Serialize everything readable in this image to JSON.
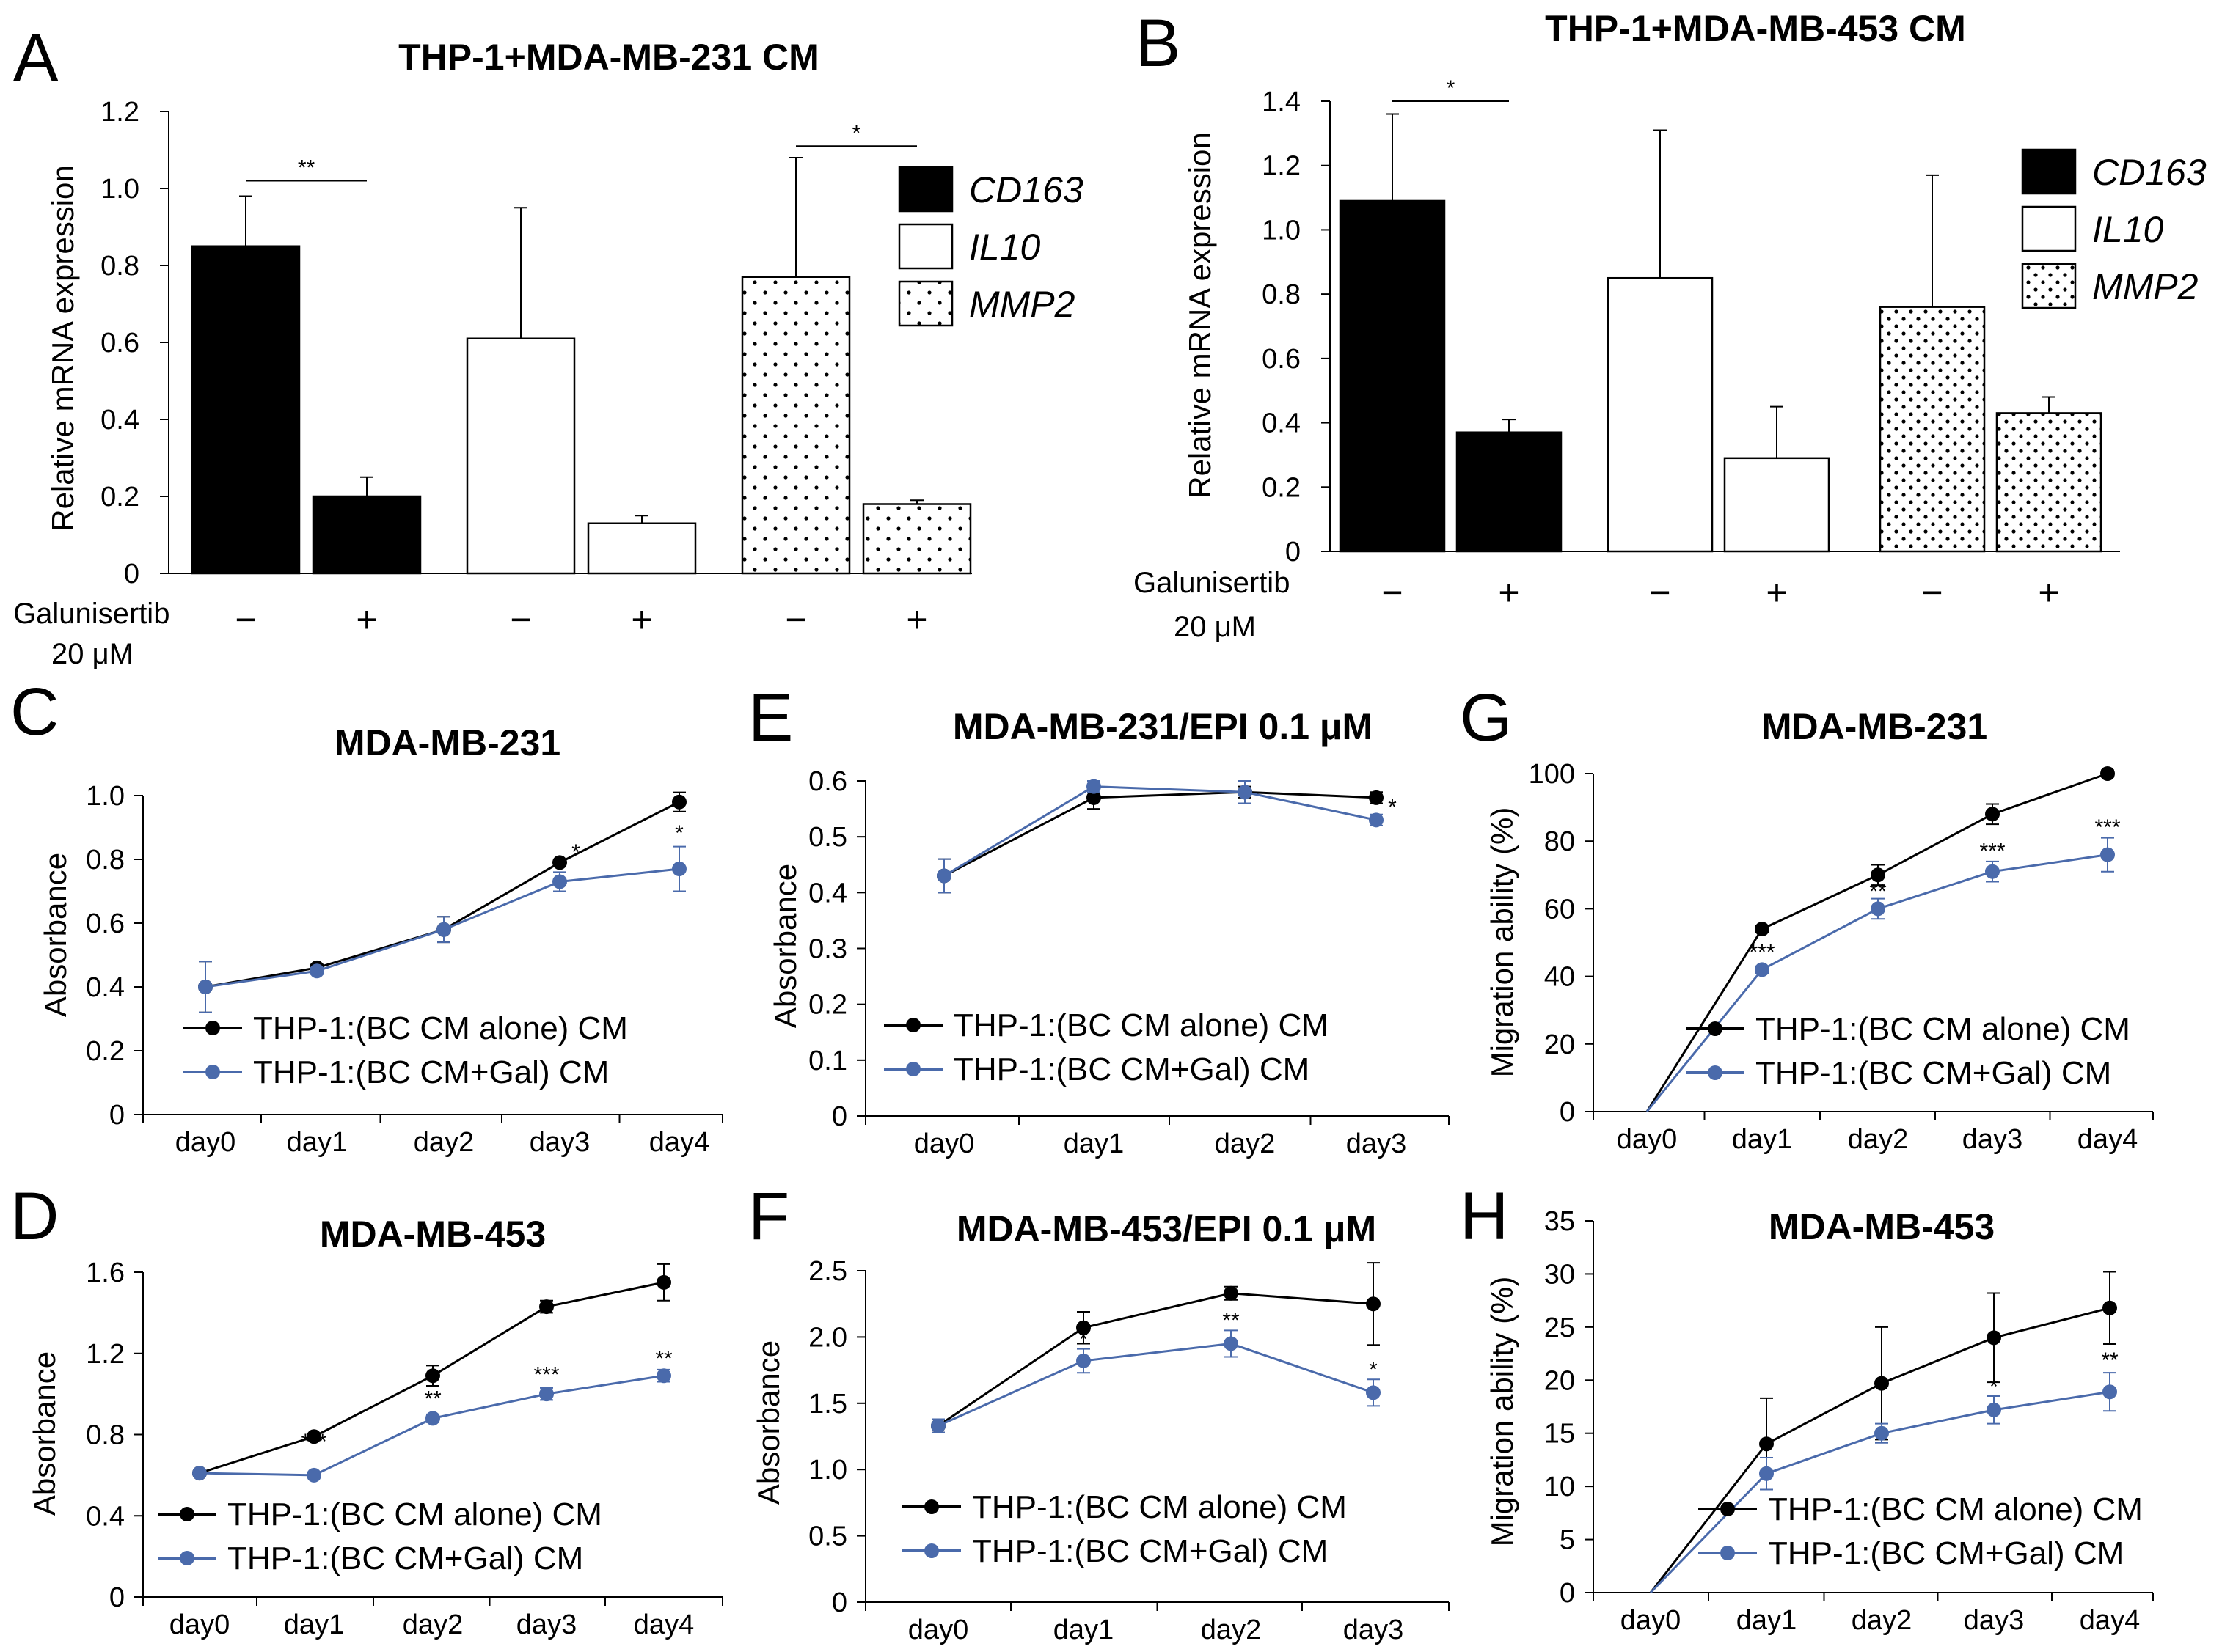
{
  "figure": {
    "panel_letters": [
      "A",
      "B",
      "C",
      "D",
      "E",
      "F",
      "G",
      "H"
    ],
    "galunisertib_label_line1": "Galunisertib",
    "galunisertib_label_line2": "20 μM",
    "bar_legend": [
      "CD163",
      "IL10",
      "MMP2"
    ],
    "line_series_names": [
      "THP-1:(BC CM alone) CM",
      "THP-1:(BC CM+Gal) CM"
    ],
    "colors": {
      "series_alone": "#000000",
      "series_gal": "#4a6aab",
      "bar_cd163": "#000000",
      "bar_il10": "#ffffff"
    }
  },
  "chart_data": [
    {
      "id": "A",
      "type": "bar",
      "title": "THP-1+MDA-MB-231 CM",
      "ylabel": "Relative mRNA expression",
      "ylim": [
        0,
        1.2
      ],
      "yticks": [
        "0",
        "0.2",
        "0.4",
        "0.6",
        "0.8",
        "1.0",
        "1.2"
      ],
      "ytick_values": [
        0,
        0.2,
        0.4,
        0.6,
        0.8,
        1.0,
        1.2
      ],
      "groups": [
        "CD163",
        "IL10",
        "MMP2"
      ],
      "conditions": [
        "−",
        "+"
      ],
      "values": [
        [
          0.85,
          0.2
        ],
        [
          0.61,
          0.13
        ],
        [
          0.77,
          0.18
        ]
      ],
      "errors": [
        [
          0.13,
          0.05
        ],
        [
          0.34,
          0.02
        ],
        [
          0.31,
          0.01
        ]
      ],
      "significance": [
        {
          "group": 0,
          "label": "**",
          "y": 1.02
        },
        {
          "group": 2,
          "label": "*",
          "y": 1.11
        }
      ]
    },
    {
      "id": "B",
      "type": "bar",
      "title": "THP-1+MDA-MB-453 CM",
      "ylabel": "Relative mRNA expression",
      "ylim": [
        0,
        1.4
      ],
      "yticks": [
        "0",
        "0.2",
        "0.4",
        "0.6",
        "0.8",
        "1.0",
        "1.2",
        "1.4"
      ],
      "ytick_values": [
        0,
        0.2,
        0.4,
        0.6,
        0.8,
        1.0,
        1.2,
        1.4
      ],
      "groups": [
        "CD163",
        "IL10",
        "MMP2"
      ],
      "conditions": [
        "−",
        "+"
      ],
      "values": [
        [
          1.09,
          0.37
        ],
        [
          0.85,
          0.29
        ],
        [
          0.76,
          0.43
        ]
      ],
      "errors": [
        [
          0.27,
          0.04
        ],
        [
          0.46,
          0.16
        ],
        [
          0.41,
          0.05
        ]
      ],
      "significance": [
        {
          "group": 0,
          "label": "*",
          "y": 1.4
        }
      ]
    },
    {
      "id": "C",
      "type": "line",
      "title": "MDA-MB-231",
      "ylabel": "Absorbance",
      "ylim": [
        0,
        1.0
      ],
      "yticks": [
        "0",
        "0.2",
        "0.4",
        "0.6",
        "0.8",
        "1.0"
      ],
      "ytick_values": [
        0,
        0.2,
        0.4,
        0.6,
        0.8,
        1.0
      ],
      "x": [
        "day0",
        "day1",
        "day2",
        "day3",
        "day4"
      ],
      "series": [
        {
          "name": "THP-1:(BC CM alone) CM",
          "values": [
            0.4,
            0.46,
            0.58,
            0.79,
            0.98
          ],
          "errors": [
            0.08,
            0.01,
            0.04,
            0.01,
            0.03
          ],
          "markers": [
            true,
            true,
            true,
            true,
            true
          ]
        },
        {
          "name": "THP-1:(BC CM+Gal) CM",
          "values": [
            0.4,
            0.45,
            0.58,
            0.73,
            0.77
          ],
          "errors": [
            0.08,
            0.01,
            0.04,
            0.03,
            0.07
          ],
          "markers": [
            true,
            true,
            true,
            true,
            true
          ]
        }
      ],
      "significance": [
        {
          "x": 3,
          "label": "*",
          "y": 0.8
        },
        {
          "x": 4,
          "label": "*",
          "y": 0.86
        }
      ]
    },
    {
      "id": "D",
      "type": "line",
      "title": "MDA-MB-453",
      "ylabel": "Absorbance",
      "ylim": [
        0,
        1.6
      ],
      "yticks": [
        "0",
        "0.4",
        "0.8",
        "1.2",
        "1.6"
      ],
      "ytick_values": [
        0,
        0.4,
        0.8,
        1.2,
        1.6
      ],
      "x": [
        "day0",
        "day1",
        "day2",
        "day3",
        "day4"
      ],
      "series": [
        {
          "name": "THP-1:(BC CM alone) CM",
          "values": [
            0.61,
            0.79,
            1.09,
            1.43,
            1.55
          ],
          "errors": [
            0.01,
            0.01,
            0.05,
            0.03,
            0.09
          ],
          "markers": [
            true,
            true,
            true,
            true,
            true
          ]
        },
        {
          "name": "THP-1:(BC CM+Gal) CM",
          "values": [
            0.61,
            0.6,
            0.88,
            1.0,
            1.09
          ],
          "errors": [
            0.01,
            0.01,
            0.02,
            0.03,
            0.03
          ],
          "markers": [
            true,
            true,
            true,
            true,
            true
          ]
        }
      ],
      "significance": [
        {
          "x": 1,
          "label": "***",
          "y": 0.73
        },
        {
          "x": 2,
          "label": "**",
          "y": 0.94
        },
        {
          "x": 3,
          "label": "***",
          "y": 1.06
        },
        {
          "x": 4,
          "label": "**",
          "y": 1.14
        }
      ]
    },
    {
      "id": "E",
      "type": "line",
      "title": "MDA-MB-231/EPI 0.1 μM",
      "ylabel": "Absorbance",
      "ylim": [
        0,
        0.6
      ],
      "yticks": [
        "0",
        "0.1",
        "0.2",
        "0.3",
        "0.4",
        "0.5",
        "0.6"
      ],
      "ytick_values": [
        0,
        0.1,
        0.2,
        0.3,
        0.4,
        0.5,
        0.6
      ],
      "x": [
        "day0",
        "day1",
        "day2",
        "day3"
      ],
      "series": [
        {
          "name": "THP-1:(BC CM alone) CM",
          "values": [
            0.43,
            0.57,
            0.58,
            0.57
          ],
          "errors": [
            0.03,
            0.02,
            0.01,
            0.01
          ],
          "markers": [
            true,
            true,
            true,
            true
          ]
        },
        {
          "name": "THP-1:(BC CM+Gal) CM",
          "values": [
            0.43,
            0.59,
            0.58,
            0.53
          ],
          "errors": [
            0.03,
            0.01,
            0.02,
            0.01
          ],
          "markers": [
            true,
            true,
            true,
            true
          ]
        }
      ],
      "significance": [
        {
          "x": 3,
          "label": "*",
          "y": 0.54
        }
      ]
    },
    {
      "id": "F",
      "type": "line",
      "title": "MDA-MB-453/EPI 0.1 μM",
      "ylabel": "Absorbance",
      "ylim": [
        0,
        2.5
      ],
      "yticks": [
        "0",
        "0.5",
        "1.0",
        "1.5",
        "2.0",
        "2.5"
      ],
      "ytick_values": [
        0,
        0.5,
        1.0,
        1.5,
        2.0,
        2.5
      ],
      "x": [
        "day0",
        "day1",
        "day2",
        "day3"
      ],
      "series": [
        {
          "name": "THP-1:(BC CM alone) CM",
          "values": [
            1.33,
            2.07,
            2.33,
            2.25
          ],
          "errors": [
            0.05,
            0.12,
            0.05,
            0.31
          ],
          "markers": [
            true,
            true,
            true,
            true
          ]
        },
        {
          "name": "THP-1:(BC CM+Gal) CM",
          "values": [
            1.33,
            1.82,
            1.95,
            1.58
          ],
          "errors": [
            0.05,
            0.09,
            0.1,
            0.1
          ],
          "markers": [
            true,
            true,
            true,
            true
          ]
        }
      ],
      "significance": [
        {
          "x": 1,
          "label": "*",
          "y": 1.93
        },
        {
          "x": 2,
          "label": "**",
          "y": 2.07
        },
        {
          "x": 3,
          "label": "*",
          "y": 1.7
        }
      ]
    },
    {
      "id": "G",
      "type": "line",
      "title": "MDA-MB-231",
      "ylabel": "Migration ability (%)",
      "ylim": [
        0,
        100
      ],
      "yticks": [
        "0",
        "20",
        "40",
        "60",
        "80",
        "100"
      ],
      "ytick_values": [
        0,
        20,
        40,
        60,
        80,
        100
      ],
      "x": [
        "day0",
        "day1",
        "day2",
        "day3",
        "day4"
      ],
      "series": [
        {
          "name": "THP-1:(BC CM alone) CM",
          "values": [
            0,
            54,
            70,
            88,
            100
          ],
          "errors": [
            0,
            1,
            3,
            3,
            1
          ],
          "markers": [
            false,
            true,
            true,
            true,
            true
          ]
        },
        {
          "name": "THP-1:(BC CM+Gal) CM",
          "values": [
            0,
            42,
            60,
            71,
            76
          ],
          "errors": [
            0,
            1,
            3,
            3,
            5
          ],
          "markers": [
            false,
            true,
            true,
            true,
            true
          ]
        }
      ],
      "significance": [
        {
          "x": 1,
          "label": "***",
          "y": 45
        },
        {
          "x": 2,
          "label": "**",
          "y": 63
        },
        {
          "x": 3,
          "label": "***",
          "y": 75
        },
        {
          "x": 4,
          "label": "***",
          "y": 82
        }
      ]
    },
    {
      "id": "H",
      "type": "line",
      "title": "MDA-MB-453",
      "ylabel": "Migration ability (%)",
      "ylim": [
        0,
        35
      ],
      "yticks": [
        "0",
        "5",
        "10",
        "15",
        "20",
        "25",
        "30",
        "35"
      ],
      "ytick_values": [
        0,
        5,
        10,
        15,
        20,
        25,
        30,
        35
      ],
      "x": [
        "day0",
        "day1",
        "day2",
        "day3",
        "day4"
      ],
      "series": [
        {
          "name": "THP-1:(BC CM alone) CM",
          "values": [
            0,
            14,
            19.7,
            24,
            26.8
          ],
          "errors": [
            0,
            4.3,
            5.3,
            4.2,
            3.4
          ],
          "markers": [
            false,
            true,
            true,
            true,
            true
          ]
        },
        {
          "name": "THP-1:(BC CM+Gal) CM",
          "values": [
            0,
            11.2,
            15,
            17.2,
            18.9
          ],
          "errors": [
            0,
            1.5,
            0.9,
            1.3,
            1.8
          ],
          "markers": [
            false,
            true,
            true,
            true,
            true
          ]
        }
      ],
      "significance": [
        {
          "x": 3,
          "label": "*",
          "y": 18.7
        },
        {
          "x": 4,
          "label": "**",
          "y": 21.2
        }
      ]
    }
  ]
}
